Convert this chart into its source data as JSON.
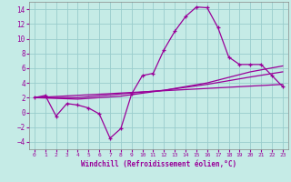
{
  "xlabel": "Windchill (Refroidissement éolien,°C)",
  "bg_color": "#c5ebe6",
  "grid_color": "#99cccc",
  "line_color": "#990099",
  "xlim": [
    -0.5,
    23.5
  ],
  "ylim": [
    -5.0,
    15.0
  ],
  "xticks": [
    0,
    1,
    2,
    3,
    4,
    5,
    6,
    7,
    8,
    9,
    10,
    11,
    12,
    13,
    14,
    15,
    16,
    17,
    18,
    19,
    20,
    21,
    22,
    23
  ],
  "yticks": [
    -4,
    -2,
    0,
    2,
    4,
    6,
    8,
    10,
    12,
    14
  ],
  "series1_x": [
    0,
    1,
    2,
    3,
    4,
    5,
    6,
    7,
    8,
    9,
    10,
    11,
    12,
    13,
    14,
    15,
    16,
    17,
    18,
    19,
    20,
    21,
    22,
    23
  ],
  "series1_y": [
    2.0,
    2.3,
    -0.5,
    1.2,
    1.0,
    0.6,
    -0.2,
    -3.5,
    -2.2,
    2.5,
    5.0,
    5.3,
    8.5,
    11.0,
    13.0,
    14.3,
    14.2,
    11.5,
    7.5,
    6.5,
    6.5,
    6.5,
    5.0,
    3.5
  ],
  "series2_x": [
    0,
    4,
    8,
    12,
    16,
    20,
    23
  ],
  "series2_y": [
    2.0,
    1.8,
    2.2,
    3.0,
    4.0,
    5.5,
    6.3
  ],
  "series3_x": [
    0,
    4,
    8,
    12,
    16,
    20,
    23
  ],
  "series3_y": [
    2.0,
    2.0,
    2.5,
    3.0,
    3.8,
    4.8,
    5.5
  ],
  "series4_x": [
    0,
    23
  ],
  "series4_y": [
    2.0,
    3.8
  ]
}
